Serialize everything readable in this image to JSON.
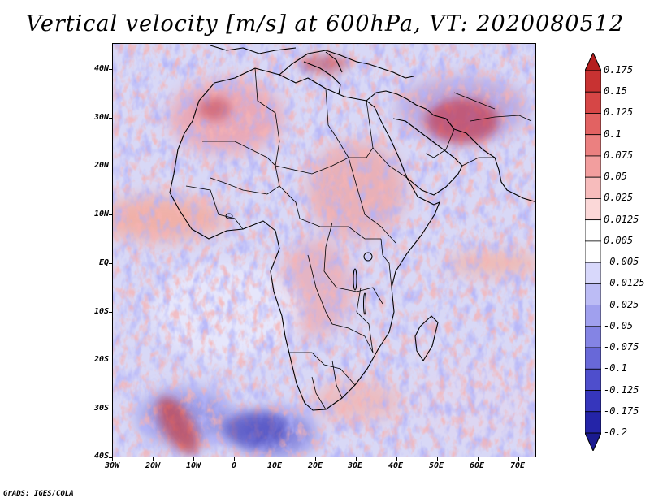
{
  "title": "Vertical velocity [m/s] at 600hPa, VT: 2020080512",
  "credit": "GrADS: IGES/COLA",
  "map": {
    "lon_range": [
      -30,
      75
    ],
    "lat_range": [
      -40,
      45
    ],
    "lat_labels": [
      "40N",
      "30N",
      "20N",
      "10N",
      "EQ",
      "10S",
      "20S",
      "30S",
      "40S"
    ],
    "lon_labels": [
      "30W",
      "20W",
      "10W",
      "0",
      "10E",
      "20E",
      "30E",
      "40E",
      "50E",
      "60E",
      "70E"
    ]
  },
  "colorbar": {
    "levels": [
      "0.175",
      "0.15",
      "0.125",
      "0.1",
      "0.075",
      "0.05",
      "0.025",
      "0.0125",
      "0.005",
      "-0.005",
      "-0.0125",
      "-0.025",
      "-0.05",
      "-0.075",
      "-0.1",
      "-0.125",
      "-0.175",
      "-0.2"
    ],
    "colors": [
      "#b41e1e",
      "#c83232",
      "#d64646",
      "#e26262",
      "#eb8080",
      "#f29e9e",
      "#f7bcbc",
      "#fbd8d8",
      "#ffffff",
      "#ffffff",
      "#d8d8fb",
      "#bcbcf5",
      "#a0a0ee",
      "#8484e4",
      "#6868d8",
      "#4e4ecc",
      "#3636bc",
      "#2424a8",
      "#1a1a90"
    ]
  }
}
